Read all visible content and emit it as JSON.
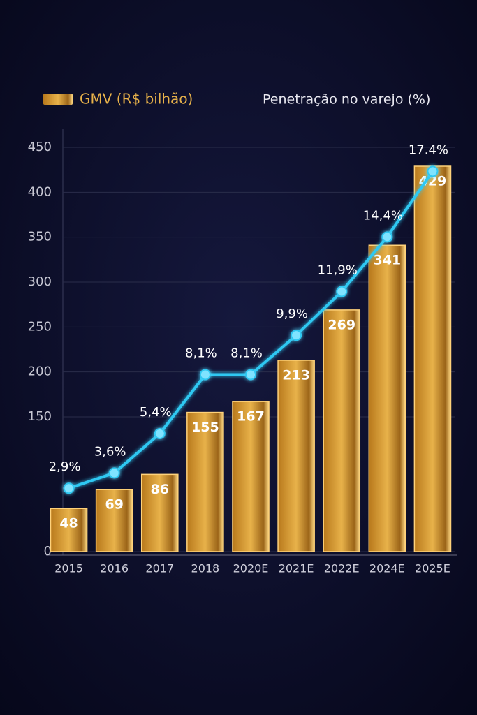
{
  "chart_data": {
    "type": "bar",
    "categories": [
      "2015",
      "2016",
      "2017",
      "2018",
      "2020E",
      "2021E",
      "2022E",
      "2024E",
      "2025E"
    ],
    "series": [
      {
        "name": "GMV (R$ bilhão)",
        "color": "#e2a838",
        "type": "bar",
        "values": [
          48,
          69,
          86,
          155,
          167,
          213,
          269,
          341,
          429
        ]
      },
      {
        "name": "Penetração no varejo (%)",
        "color": "#2ec8f2",
        "type": "line",
        "axis": "y2",
        "values": [
          2.9,
          3.6,
          5.4,
          8.1,
          8.1,
          9.9,
          11.9,
          14.4,
          17.4
        ],
        "value_labels": [
          "2,9%",
          "3,6%",
          "5,4%",
          "8,1%",
          "8,1%",
          "9,9%",
          "11,9%",
          "14,4%",
          "17.4%"
        ]
      }
    ],
    "ylim": [
      0,
      450
    ],
    "yticks": [
      0,
      150,
      200,
      250,
      300,
      350,
      400,
      450
    ],
    "y2lim": [
      0,
      18.5
    ],
    "grid": true,
    "legend": "top"
  }
}
